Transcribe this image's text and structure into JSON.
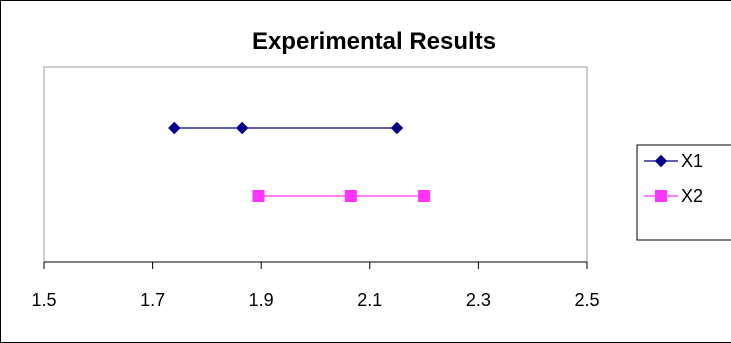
{
  "chart_data": {
    "type": "line",
    "title": "Experimental Results",
    "xlabel": "",
    "ylabel": "",
    "xlim": [
      1.5,
      2.5
    ],
    "x_ticks": [
      "1.5",
      "1.7",
      "1.9",
      "2.1",
      "2.3",
      "2.5"
    ],
    "x_tick_values": [
      1.5,
      1.7,
      1.9,
      2.1,
      2.3,
      2.5
    ],
    "grid": false,
    "legend_position": "right",
    "series": [
      {
        "name": "X1",
        "color": "#00008b",
        "marker": "diamond",
        "x": [
          1.74,
          1.865,
          2.15
        ],
        "y": [
          1,
          1,
          1
        ]
      },
      {
        "name": "X2",
        "color": "#ff33ff",
        "marker": "square",
        "x": [
          1.895,
          2.065,
          2.2
        ],
        "y": [
          2,
          2,
          2
        ]
      }
    ]
  }
}
